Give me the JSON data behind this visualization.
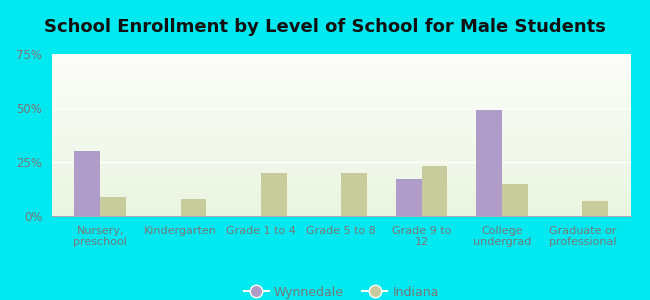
{
  "title": "School Enrollment by Level of School for Male Students",
  "categories": [
    "Nursery,\npreschool",
    "Kindergarten",
    "Grade 1 to 4",
    "Grade 5 to 8",
    "Grade 9 to\n12",
    "College\nundergrad",
    "Graduate or\nprofessional"
  ],
  "wynnedale": [
    30,
    0,
    0,
    0,
    17,
    49,
    0
  ],
  "indiana": [
    9,
    8,
    20,
    20,
    23,
    15,
    7
  ],
  "wynnedale_color": "#b09cc8",
  "indiana_color": "#c8cc9c",
  "background_outer": "#00e8f0",
  "title_fontsize": 13,
  "title_color": "#111111",
  "legend_labels": [
    "Wynnedale",
    "Indiana"
  ],
  "ylim": [
    0,
    75
  ],
  "yticks": [
    0,
    25,
    50,
    75
  ],
  "ytick_labels": [
    "0%",
    "25%",
    "50%",
    "75%"
  ],
  "bar_width": 0.32,
  "figsize": [
    6.5,
    3.0
  ],
  "dpi": 100,
  "tick_color": "#777777",
  "grid_color": "#dddddd"
}
